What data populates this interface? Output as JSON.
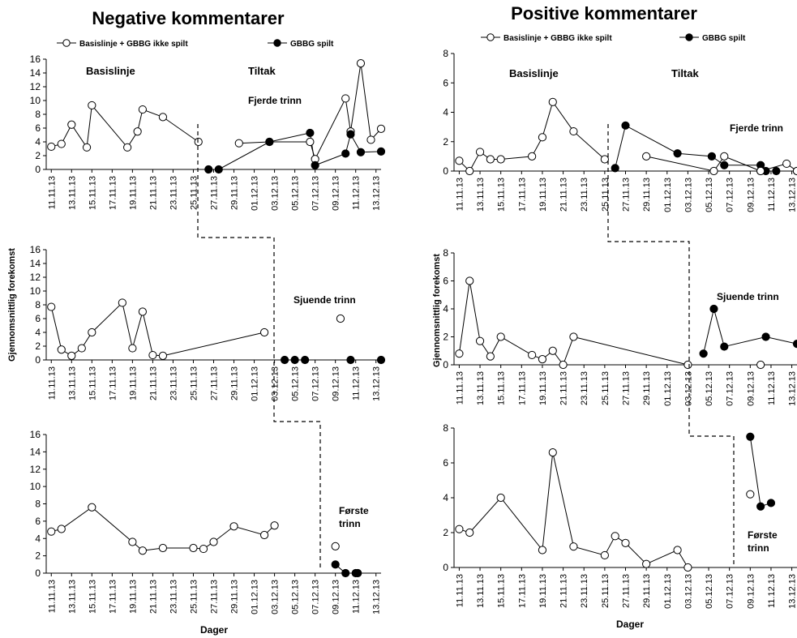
{
  "x_ticks": [
    "11.11.13",
    "13.11.13",
    "15.11.13",
    "17.11.13",
    "19.11.13",
    "21.11.13",
    "23.11.13",
    "25.11.13",
    "27.11.13",
    "29.11.13",
    "01.12.13",
    "03.12.13",
    "05.12.13",
    "07.12.13",
    "09.12.13",
    "11.12.13",
    "13.12.13"
  ],
  "xlabel": "Dager",
  "ylabel": "Gjennomsnittlig forekomst",
  "legend": {
    "open": "Basislinje + GBBG ikke spilt",
    "filled": "GBBG spilt"
  },
  "phase_labels": {
    "baseline": "Basislinje",
    "treatment": "Tiltak"
  },
  "panels": [
    {
      "title": "Negative kommentarer"
    },
    {
      "title": "Positive kommentarer"
    }
  ],
  "chart_data": [
    {
      "type": "line",
      "title": "Negative kommentarer",
      "annotation": "Fjerde trinn",
      "ylim": [
        0,
        16
      ],
      "yticks": [
        0,
        2,
        4,
        6,
        8,
        10,
        12,
        14,
        16
      ],
      "series": [
        {
          "name": "Basislinje + GBBG ikke spilt",
          "marker": "open",
          "points": [
            [
              0,
              3.3
            ],
            [
              1,
              3.7
            ],
            [
              2,
              6.5
            ],
            [
              3.5,
              3.2
            ],
            [
              4,
              9.3
            ],
            [
              7.5,
              3.2
            ],
            [
              8.5,
              5.5
            ],
            [
              9,
              8.7
            ],
            [
              11,
              7.6
            ],
            [
              14.5,
              4
            ]
          ]
        },
        {
          "name": "Basislinje + GBBG ikke spilt",
          "marker": "open",
          "points": [
            [
              18.5,
              3.8
            ],
            [
              21.5,
              4
            ],
            [
              25.5,
              4
            ],
            [
              26,
              1.5
            ],
            [
              29,
              10.3
            ],
            [
              29.5,
              5.5
            ],
            [
              30.5,
              15.4
            ],
            [
              31.5,
              4.3
            ],
            [
              32.5,
              5.9
            ]
          ]
        },
        {
          "name": "GBBG spilt",
          "marker": "filled",
          "points": [
            [
              15.5,
              0
            ],
            [
              16.5,
              0
            ],
            [
              21.5,
              4
            ],
            [
              25.5,
              5.3
            ],
            [
              26,
              0.6
            ],
            [
              29,
              2.3
            ],
            [
              29.5,
              5.1
            ],
            [
              30.5,
              2.5
            ],
            [
              32.5,
              2.6
            ]
          ]
        }
      ]
    },
    {
      "type": "line",
      "annotation": "Sjuende trinn",
      "ylim": [
        0,
        16
      ],
      "yticks": [
        0,
        2,
        4,
        6,
        8,
        10,
        12,
        14,
        16
      ],
      "series": [
        {
          "name": "Basislinje + GBBG ikke spilt",
          "marker": "open",
          "points": [
            [
              0,
              7.7
            ],
            [
              1,
              1.5
            ],
            [
              2,
              0.6
            ],
            [
              3,
              1.7
            ],
            [
              4,
              4
            ],
            [
              7,
              8.3
            ],
            [
              8,
              1.7
            ],
            [
              9,
              7
            ],
            [
              10,
              0.7
            ],
            [
              11,
              0.6
            ],
            [
              21,
              4
            ]
          ]
        },
        {
          "name": "Basislinje + GBBG ikke spilt",
          "marker": "open",
          "points": [
            [
              28.5,
              6
            ]
          ]
        },
        {
          "name": "GBBG spilt",
          "marker": "filled",
          "points": [
            [
              23,
              0
            ],
            [
              24,
              0
            ],
            [
              25,
              0
            ],
            [
              29.5,
              0
            ],
            [
              32.5,
              0
            ]
          ]
        }
      ]
    },
    {
      "type": "line",
      "annotation": "Første trinn",
      "ylim": [
        0,
        16
      ],
      "yticks": [
        0,
        2,
        4,
        6,
        8,
        10,
        12,
        14,
        16
      ],
      "series": [
        {
          "name": "Basislinje + GBBG ikke spilt",
          "marker": "open",
          "points": [
            [
              0,
              4.8
            ],
            [
              1,
              5.1
            ],
            [
              4,
              7.6
            ],
            [
              8,
              3.6
            ],
            [
              9,
              2.6
            ],
            [
              11,
              2.9
            ],
            [
              14,
              2.9
            ],
            [
              15,
              2.8
            ],
            [
              16,
              3.6
            ],
            [
              18,
              5.4
            ],
            [
              21,
              4.4
            ],
            [
              22,
              5.5
            ]
          ]
        },
        {
          "name": "Basislinje + GBBG ikke spilt",
          "marker": "open",
          "points": [
            [
              28,
              3.1
            ]
          ]
        },
        {
          "name": "GBBG spilt",
          "marker": "filled",
          "points": [
            [
              28,
              1
            ],
            [
              29,
              0
            ],
            [
              30,
              0
            ],
            [
              30.2,
              0
            ]
          ]
        }
      ]
    },
    {
      "type": "line",
      "title": "Positive kommentarer",
      "annotation": "Fjerde trinn",
      "ylim": [
        0,
        8
      ],
      "yticks": [
        0,
        2,
        4,
        6,
        8
      ],
      "series": [
        {
          "name": "Basislinje + GBBG ikke spilt",
          "marker": "open",
          "points": [
            [
              0,
              0.7
            ],
            [
              1,
              0
            ],
            [
              2,
              1.3
            ],
            [
              3,
              0.8
            ],
            [
              4,
              0.8
            ],
            [
              7,
              1
            ],
            [
              8,
              2.3
            ],
            [
              9,
              4.7
            ],
            [
              11,
              2.7
            ],
            [
              14,
              0.8
            ]
          ]
        },
        {
          "name": "Basislinje + GBBG ikke spilt",
          "marker": "open",
          "points": [
            [
              18,
              1
            ],
            [
              24.5,
              0
            ],
            [
              25.5,
              1
            ],
            [
              29,
              0
            ]
          ]
        },
        {
          "name": "GBBG spilt",
          "marker": "filled",
          "points": [
            [
              15,
              0.2
            ],
            [
              16,
              3.1
            ],
            [
              21,
              1.2
            ],
            [
              24.3,
              1
            ],
            [
              25.5,
              0.4
            ],
            [
              29,
              0.4
            ],
            [
              29.5,
              0
            ],
            [
              30.5,
              0
            ],
            [
              32.5,
              0
            ]
          ]
        },
        {
          "name": "Basislinje + GBBG ikke spilt",
          "marker": "open",
          "points": [
            [
              29,
              0
            ],
            [
              31.5,
              0.5
            ],
            [
              32.5,
              0
            ]
          ]
        }
      ]
    },
    {
      "type": "line",
      "annotation": "Sjuende trinn",
      "ylim": [
        0,
        8
      ],
      "yticks": [
        0,
        2,
        4,
        6,
        8
      ],
      "series": [
        {
          "name": "Basislinje + GBBG ikke spilt",
          "marker": "open",
          "points": [
            [
              0,
              0.8
            ],
            [
              1,
              6
            ],
            [
              2,
              1.7
            ],
            [
              3,
              0.6
            ],
            [
              4,
              2
            ],
            [
              7,
              0.7
            ],
            [
              8,
              0.4
            ],
            [
              9,
              1
            ],
            [
              10,
              0
            ],
            [
              11,
              2
            ],
            [
              22,
              0
            ]
          ]
        },
        {
          "name": "Basislinje + GBBG ikke spilt",
          "marker": "open",
          "points": [
            [
              29,
              0
            ]
          ]
        },
        {
          "name": "GBBG spilt",
          "marker": "filled",
          "points": [
            [
              23.5,
              0.8
            ],
            [
              24.5,
              4
            ],
            [
              25.5,
              1.3
            ],
            [
              29.5,
              2
            ],
            [
              32.5,
              1.5
            ]
          ]
        }
      ]
    },
    {
      "type": "line",
      "annotation": "Første trinn",
      "ylim": [
        0,
        8
      ],
      "yticks": [
        0,
        2,
        4,
        6,
        8
      ],
      "series": [
        {
          "name": "Basislinje + GBBG ikke spilt",
          "marker": "open",
          "points": [
            [
              0,
              2.2
            ],
            [
              1,
              2
            ],
            [
              4,
              4
            ],
            [
              8,
              1
            ],
            [
              9,
              6.6
            ],
            [
              11,
              1.2
            ],
            [
              14,
              0.7
            ],
            [
              15,
              1.8
            ],
            [
              16,
              1.4
            ],
            [
              18,
              0.2
            ],
            [
              21,
              1
            ],
            [
              22,
              0
            ]
          ]
        },
        {
          "name": "Basislinje + GBBG ikke spilt",
          "marker": "open",
          "points": [
            [
              28,
              4.2
            ]
          ]
        },
        {
          "name": "GBBG spilt",
          "marker": "filled",
          "points": [
            [
              28,
              7.5
            ],
            [
              29,
              3.5
            ],
            [
              30,
              3.7
            ]
          ]
        }
      ]
    }
  ]
}
